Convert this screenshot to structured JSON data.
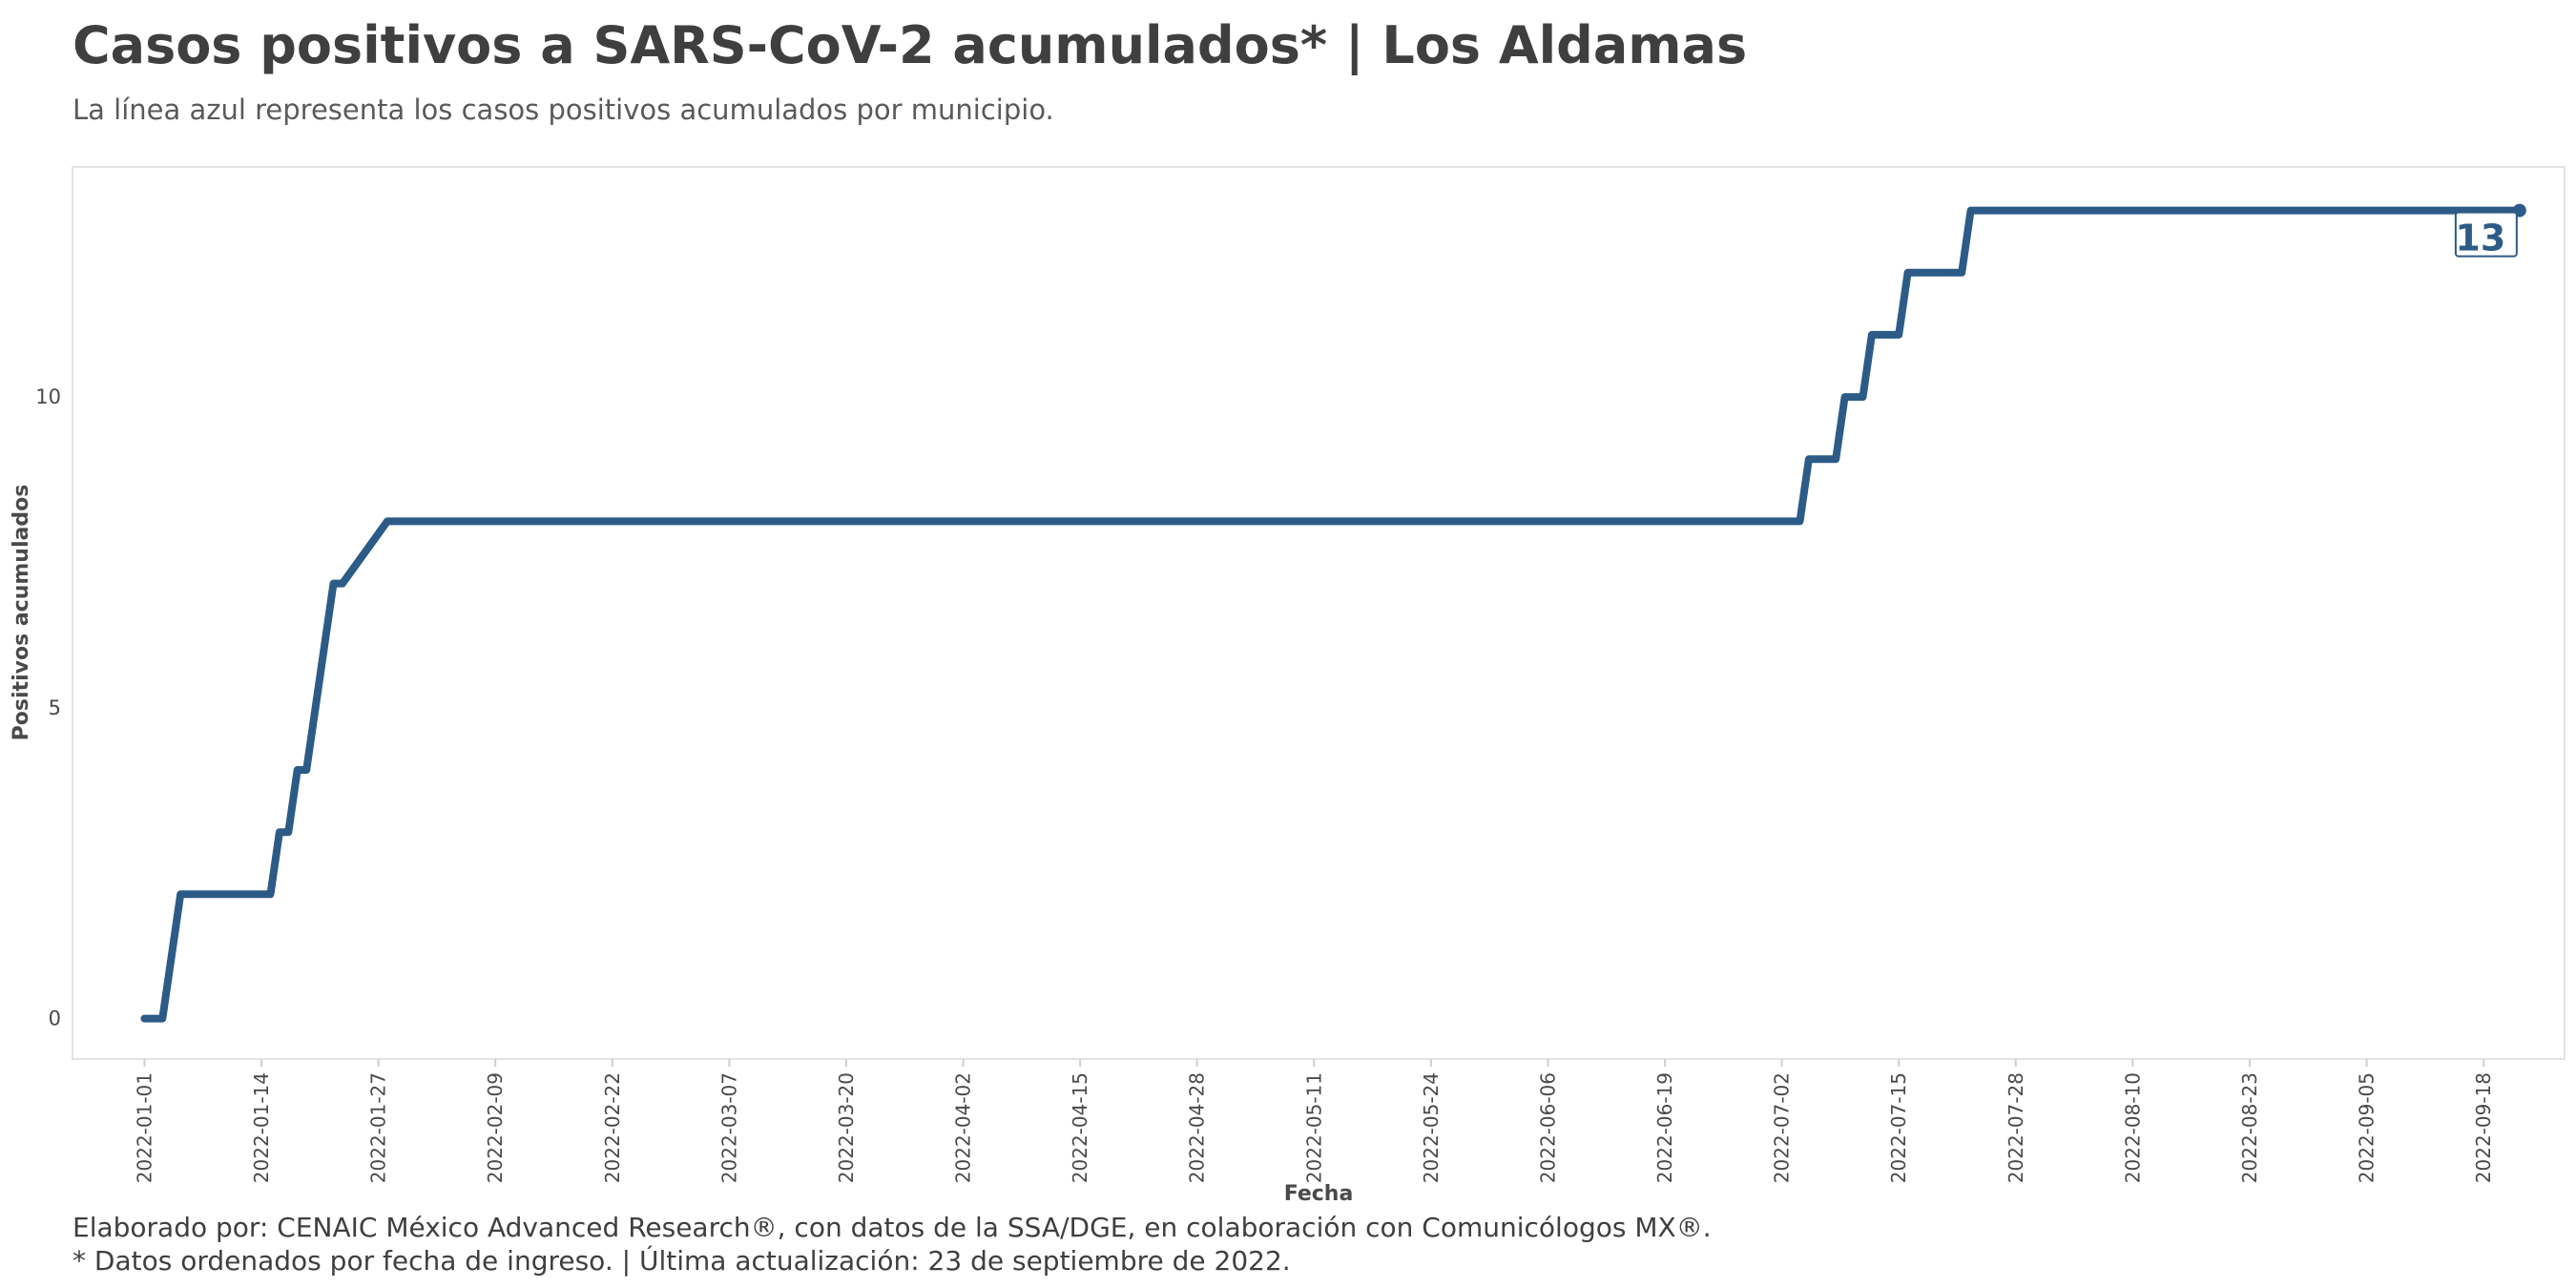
{
  "chart_data": {
    "type": "line",
    "title": "Casos positivos a SARS-CoV-2 acumulados* | Los Aldamas",
    "subtitle": "La línea azul representa los casos positivos acumulados por municipio.",
    "xlabel": "Fecha",
    "ylabel": "Positivos acumulados",
    "x_ticks": [
      "2022-01-01",
      "2022-01-14",
      "2022-01-27",
      "2022-02-09",
      "2022-02-22",
      "2022-03-07",
      "2022-03-20",
      "2022-04-02",
      "2022-04-15",
      "2022-04-28",
      "2022-05-11",
      "2022-05-24",
      "2022-06-06",
      "2022-06-19",
      "2022-07-02",
      "2022-07-15",
      "2022-07-28",
      "2022-08-10",
      "2022-08-23",
      "2022-09-05",
      "2022-09-18"
    ],
    "y_ticks": [
      0,
      5,
      10
    ],
    "ylim": [
      -0.65,
      13.7
    ],
    "xlim": [
      "2021-12-24",
      "2022-09-27"
    ],
    "grid": false,
    "series": [
      {
        "color": "#2c5b87",
        "x": [
          "2022-01-01",
          "2022-01-03",
          "2022-01-05",
          "2022-01-15",
          "2022-01-16",
          "2022-01-17",
          "2022-01-18",
          "2022-01-19",
          "2022-01-22",
          "2022-01-23",
          "2022-01-28",
          "2022-01-29",
          "2022-07-04",
          "2022-07-05",
          "2022-07-08",
          "2022-07-09",
          "2022-07-11",
          "2022-07-12",
          "2022-07-15",
          "2022-07-16",
          "2022-07-22",
          "2022-07-23",
          "2022-09-22"
        ],
        "y": [
          0,
          0,
          2,
          2,
          3,
          3,
          4,
          4,
          7,
          7,
          8,
          8,
          8,
          9,
          9,
          10,
          10,
          11,
          11,
          12,
          12,
          13,
          13
        ]
      }
    ],
    "end_label": "13"
  },
  "caption": {
    "line1": "Elaborado por: CENAIC México Advanced Research®, con datos de la SSA/DGE, en colaboración con Comunicólogos MX®.",
    "line2": "* Datos ordenados por fecha de ingreso. | Última actualización: 23 de septiembre de 2022."
  }
}
